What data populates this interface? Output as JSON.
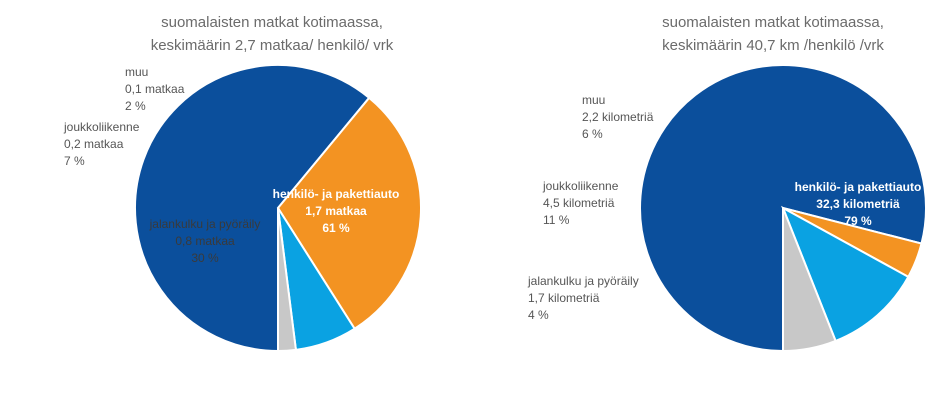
{
  "chart_data": [
    {
      "type": "pie",
      "title_lines": [
        "suomalaisten matkat kotimaassa,",
        "keskimäärin 2,7 matkaa/ henkilö/ vrk"
      ],
      "slices": [
        {
          "name": "henkilö- ja pakettiauto",
          "value": 61,
          "amount": "1,7 matkaa",
          "percent": "61 %",
          "color": "#0b4f9c"
        },
        {
          "name": "jalankulku ja pyöräily",
          "value": 30,
          "amount": "0,8 matkaa",
          "percent": "30 %",
          "color": "#f39322"
        },
        {
          "name": "joukkoliikenne",
          "value": 7,
          "amount": "0,2 matkaa",
          "percent": "7 %",
          "color": "#0aa2e2"
        },
        {
          "name": "muu",
          "value": 2,
          "amount": "0,1 matkaa",
          "percent": "2 %",
          "color": "#c8c8c8"
        }
      ]
    },
    {
      "type": "pie",
      "title_lines": [
        "suomalaisten matkat kotimaassa,",
        "keskimäärin 40,7 km /henkilö /vrk"
      ],
      "slices": [
        {
          "name": "henkilö- ja pakettiauto",
          "value": 79,
          "amount": "32,3 kilometriä",
          "percent": "79 %",
          "color": "#0b4f9c"
        },
        {
          "name": "jalankulku ja pyöräily",
          "value": 4,
          "amount": "1,7 kilometriä",
          "percent": "4 %",
          "color": "#f39322"
        },
        {
          "name": "joukkoliikenne",
          "value": 11,
          "amount": "4,5 kilometriä",
          "percent": "11 %",
          "color": "#0aa2e2"
        },
        {
          "name": "muu",
          "value": 6,
          "amount": "2,2 kilometriä",
          "percent": "6 %",
          "color": "#c8c8c8"
        }
      ]
    }
  ]
}
